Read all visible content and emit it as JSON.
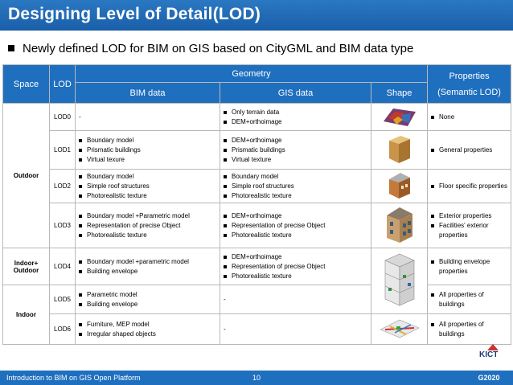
{
  "slide": {
    "title": "Designing Level of Detail(LOD)",
    "subtitle": "Newly defined LOD for BIM on GIS based on CityGML and BIM data type"
  },
  "table": {
    "headers": {
      "space": "Space",
      "lod": "LOD",
      "geometry": "Geometry",
      "properties_line1": "Properties",
      "properties_line2": "(Semantic LOD)",
      "bim": "BIM data",
      "gis": "GIS data",
      "shape": "Shape"
    },
    "spaces": {
      "outdoor": "Outdoor",
      "indoor_outdoor_1": "Indoor+",
      "indoor_outdoor_2": "Outdoor",
      "indoor": "Indoor"
    },
    "rows": [
      {
        "lod": "LOD0",
        "bim_text": "-",
        "gis": [
          "Only terrain data",
          "DEM+orthoimage"
        ],
        "props": [
          "None"
        ],
        "shape_icon": "terrain-icon"
      },
      {
        "lod": "LOD1",
        "bim": [
          "Boundary model",
          "Prismatic buildings",
          "Virtual texure"
        ],
        "gis": [
          "DEM+orthoimage",
          "Prismatic buildings",
          "Virtual texture"
        ],
        "props": [
          "General properties"
        ],
        "shape_icon": "prism-building-icon"
      },
      {
        "lod": "LOD2",
        "bim": [
          "Boundary model",
          "Simple roof structures",
          "Photorealistic texture"
        ],
        "gis": [
          "Boundary model",
          "Simple roof structures",
          "Photorealistic texture"
        ],
        "props": [
          "Floor specific properties"
        ],
        "shape_icon": "roofed-building-icon"
      },
      {
        "lod": "LOD3",
        "bim": [
          "Boundary model +Parametric model",
          "Representation of precise Object",
          "Photorealistic texture"
        ],
        "gis": [
          "DEM+orthoimage",
          "Representation of precise Object",
          "Photorealistic texture"
        ],
        "props": [
          "Exterior properties",
          "Facilities' exterior properties"
        ],
        "shape_icon": "detailed-building-icon"
      },
      {
        "lod": "LOD4",
        "bim": [
          "Boundary model +parametric model",
          "Building envelope"
        ],
        "gis": [
          "DEM+orthoimage",
          "Representation of precise Object",
          "Photorealistic texture"
        ],
        "props": [
          "Building envelope properties"
        ],
        "shape_icon": "interior-model-icon"
      },
      {
        "lod": "LOD5",
        "bim": [
          "Parametric model",
          "Building envelope"
        ],
        "gis_text": "-",
        "props": [
          "All properties of buildings"
        ]
      },
      {
        "lod": "LOD6",
        "bim": [
          "Furniture, MEP model",
          "Irregular shaped objects"
        ],
        "gis_text": "-",
        "props": [
          "All properties of buildings"
        ],
        "shape_icon": "mep-model-icon"
      }
    ]
  },
  "footer": {
    "left": "Introduction to BIM on GIS Open Platform",
    "page": "10",
    "logo_text": "KICT",
    "corner_logo": "G2020"
  },
  "colors": {
    "title_blue": "#1a5ea8",
    "header_blue": "#1f6fbf"
  }
}
